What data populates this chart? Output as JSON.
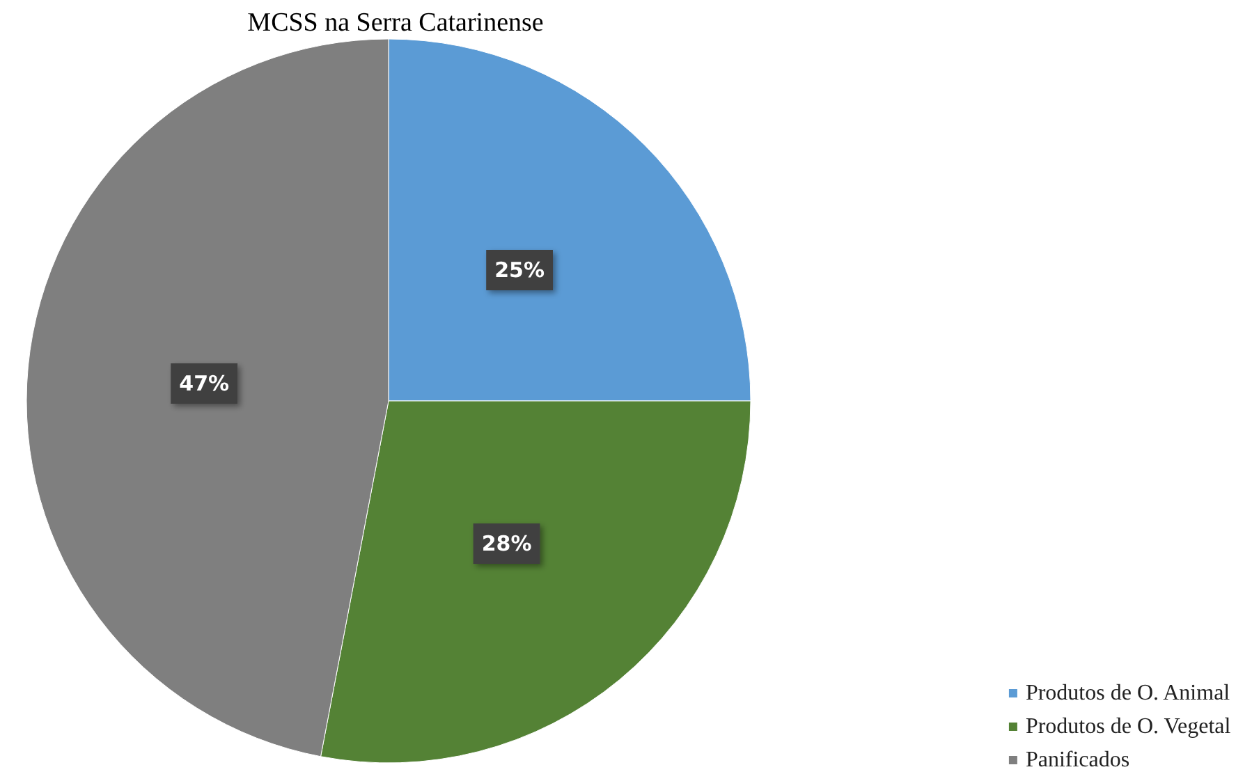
{
  "chart_data": {
    "type": "pie",
    "title": "MCSS na Serra Catarinense",
    "categories": [
      "Produtos de O. Animal",
      "Produtos de O. Vegetal",
      "Panificados"
    ],
    "values": [
      25,
      28,
      47
    ],
    "colors": [
      "#5b9bd5",
      "#548235",
      "#7f7f7f"
    ],
    "value_labels": [
      "25%",
      "28%",
      "47%"
    ],
    "legend": "bottom right"
  }
}
